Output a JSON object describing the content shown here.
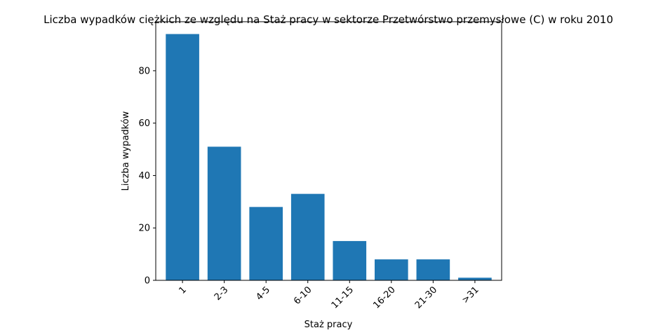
{
  "chart_data": {
    "type": "bar",
    "title": "Liczba wypadków ciężkich ze względu na Staż pracy w sektorze Przetwórstwo przemysłowe (C)   w roku 2010",
    "xlabel": "Staż pracy",
    "ylabel": "Liczba wypadków",
    "categories": [
      "1",
      "2-3",
      "4-5",
      "6-10",
      "11-15",
      "16-20",
      "21-30",
      ">31"
    ],
    "values": [
      94,
      51,
      28,
      33,
      15,
      8,
      8,
      1
    ],
    "ylim": [
      0,
      98.7
    ],
    "yticks": [
      0,
      20,
      40,
      60,
      80
    ],
    "bar_color": "#1f77b4",
    "grid": false,
    "legend": "none"
  }
}
